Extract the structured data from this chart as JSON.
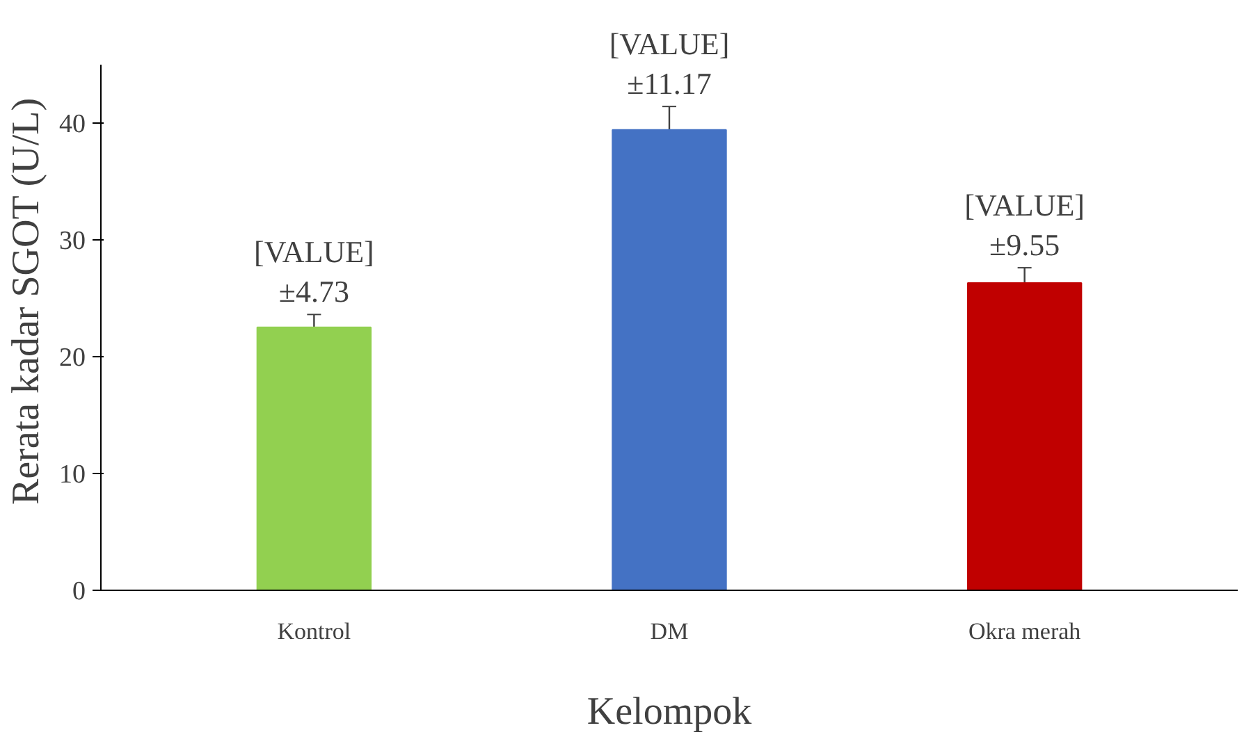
{
  "chart_data": {
    "type": "bar",
    "xlabel": "Kelompok",
    "ylabel": "Rerata kadar SGOT (U/L)",
    "categories": [
      "Kontrol",
      "DM",
      "Okra merah"
    ],
    "values": [
      22.5,
      39.4,
      26.3
    ],
    "colors": [
      "#92d050",
      "#4472c4",
      "#c00000"
    ],
    "errors": [
      1.1,
      2.0,
      1.3
    ],
    "annotations": [
      "[VALUE]\n±4.73",
      "[VALUE]\n±11.17",
      "[VALUE]\n±9.55"
    ],
    "ylim": [
      0,
      45
    ],
    "yticks": [
      0,
      10,
      20,
      30,
      40
    ],
    "grid": false
  }
}
